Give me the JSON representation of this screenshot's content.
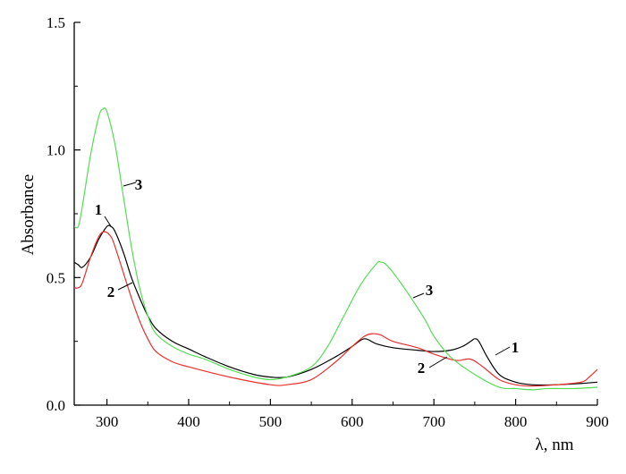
{
  "chart_data": {
    "type": "line",
    "title": "",
    "xlabel": "λ, nm",
    "ylabel": "Absorbance",
    "xlim": [
      260,
      900
    ],
    "ylim": [
      0.0,
      1.5
    ],
    "xticks": [
      {
        "value": 300,
        "label": "300"
      },
      {
        "value": 400,
        "label": "400"
      },
      {
        "value": 500,
        "label": "500"
      },
      {
        "value": 600,
        "label": "600"
      },
      {
        "value": 700,
        "label": "700"
      },
      {
        "value": 800,
        "label": "800"
      },
      {
        "value": 900,
        "label": "900"
      }
    ],
    "yticks": [
      {
        "value": 0.0,
        "label": "0.0"
      },
      {
        "value": 0.5,
        "label": "0.5"
      },
      {
        "value": 1.0,
        "label": "1.0"
      },
      {
        "value": 1.5,
        "label": "1.5"
      }
    ],
    "grid": false,
    "legend": "none",
    "series": [
      {
        "label": "1",
        "color": "#000000",
        "x": [
          260,
          265,
          270,
          280,
          290,
          300,
          305,
          310,
          320,
          330,
          340,
          350,
          360,
          380,
          400,
          420,
          450,
          480,
          500,
          520,
          550,
          580,
          600,
          615,
          630,
          650,
          680,
          700,
          720,
          735,
          745,
          750,
          755,
          765,
          780,
          800,
          820,
          850,
          880,
          900
        ],
        "y": [
          0.56,
          0.55,
          0.54,
          0.58,
          0.65,
          0.7,
          0.7,
          0.68,
          0.6,
          0.5,
          0.42,
          0.35,
          0.3,
          0.25,
          0.22,
          0.19,
          0.15,
          0.12,
          0.11,
          0.11,
          0.14,
          0.19,
          0.23,
          0.26,
          0.24,
          0.225,
          0.215,
          0.21,
          0.215,
          0.23,
          0.25,
          0.26,
          0.25,
          0.19,
          0.12,
          0.09,
          0.08,
          0.08,
          0.085,
          0.09
        ]
      },
      {
        "label": "2",
        "color": "#e83030",
        "x": [
          260,
          265,
          270,
          280,
          290,
          297,
          305,
          310,
          320,
          330,
          340,
          350,
          360,
          380,
          400,
          450,
          500,
          520,
          550,
          580,
          600,
          615,
          625,
          635,
          650,
          680,
          700,
          720,
          730,
          745,
          760,
          780,
          800,
          820,
          850,
          880,
          890,
          900
        ],
        "y": [
          0.46,
          0.46,
          0.48,
          0.58,
          0.66,
          0.68,
          0.66,
          0.62,
          0.52,
          0.42,
          0.33,
          0.26,
          0.21,
          0.17,
          0.15,
          0.11,
          0.08,
          0.08,
          0.1,
          0.17,
          0.23,
          0.27,
          0.28,
          0.275,
          0.25,
          0.225,
          0.2,
          0.18,
          0.175,
          0.18,
          0.15,
          0.1,
          0.08,
          0.075,
          0.08,
          0.09,
          0.11,
          0.14
        ]
      },
      {
        "label": "3",
        "color": "#55dd55",
        "x": [
          260,
          265,
          270,
          280,
          290,
          295,
          300,
          310,
          320,
          330,
          340,
          350,
          360,
          380,
          400,
          420,
          450,
          480,
          500,
          520,
          550,
          570,
          590,
          610,
          630,
          635,
          640,
          650,
          670,
          690,
          700,
          720,
          750,
          780,
          800,
          820,
          840,
          870,
          900
        ],
        "y": [
          0.7,
          0.7,
          0.78,
          0.98,
          1.13,
          1.16,
          1.15,
          1.02,
          0.82,
          0.62,
          0.46,
          0.35,
          0.28,
          0.23,
          0.2,
          0.18,
          0.14,
          0.11,
          0.1,
          0.11,
          0.15,
          0.23,
          0.35,
          0.47,
          0.555,
          0.56,
          0.555,
          0.52,
          0.43,
          0.33,
          0.27,
          0.19,
          0.12,
          0.07,
          0.065,
          0.06,
          0.065,
          0.065,
          0.07
        ]
      }
    ],
    "annotations": [
      {
        "text": "1",
        "series": "1",
        "at_x": 302,
        "at_y": 0.72
      },
      {
        "text": "2",
        "series": "2",
        "at_x": 332,
        "at_y": 0.5
      },
      {
        "text": "3",
        "series": "3",
        "at_x": 318,
        "at_y": 0.88
      },
      {
        "text": "1",
        "series": "1",
        "at_x": 757,
        "at_y": 0.19
      },
      {
        "text": "2",
        "series": "2",
        "at_x": 690,
        "at_y": 0.15
      },
      {
        "text": "3",
        "series": "3",
        "at_x": 670,
        "at_y": 0.43
      }
    ]
  }
}
